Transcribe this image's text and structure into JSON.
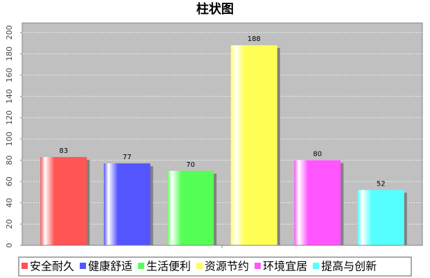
{
  "chart_data": {
    "type": "bar",
    "title": "柱状图",
    "series": [
      {
        "name": "安全耐久",
        "color": "#ff5555",
        "values": [
          83
        ]
      },
      {
        "name": "健康舒适",
        "color": "#5555ff",
        "values": [
          77
        ]
      },
      {
        "name": "生活便利",
        "color": "#55ff55",
        "values": [
          70
        ]
      },
      {
        "name": "资源节约",
        "color": "#ffff55",
        "values": [
          188
        ]
      },
      {
        "name": "环境宜居",
        "color": "#ff55ff",
        "values": [
          80
        ]
      },
      {
        "name": "提高与创新",
        "color": "#55ffff",
        "values": [
          52
        ]
      }
    ],
    "ylim": [
      0,
      209
    ],
    "yticks": [
      0,
      20,
      40,
      60,
      80,
      100,
      120,
      140,
      160,
      180,
      200
    ],
    "grid": true,
    "legend": "bottom"
  }
}
